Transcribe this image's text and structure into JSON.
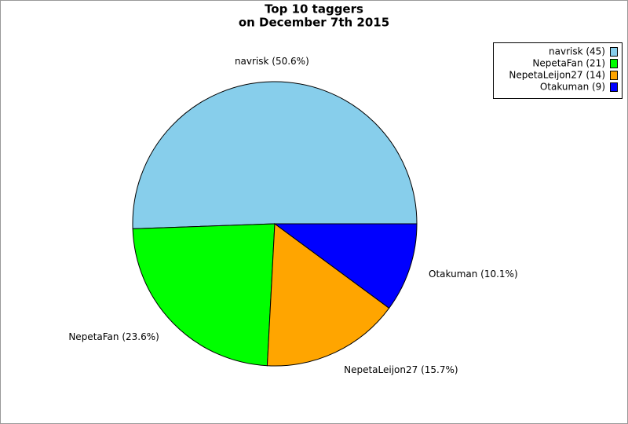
{
  "chart_data": {
    "type": "pie",
    "title": "Top 10 taggers",
    "subtitle": "on December 7th 2015",
    "categories": [
      "navrisk (45)",
      "NepetaFan (21)",
      "NepetaLeijon27 (14)",
      "Otakuman (9)"
    ],
    "values": [
      45,
      21,
      14,
      9
    ],
    "value_labels": [
      "navrisk (50.6%)",
      "NepetaFan (23.6%)",
      "NepetaLeijon27 (15.7%)",
      "Otakuman (10.1%)"
    ],
    "colors": [
      "#87ceeb",
      "#00ff00",
      "#ffa500",
      "#0000ff"
    ],
    "legend": "top-right"
  }
}
